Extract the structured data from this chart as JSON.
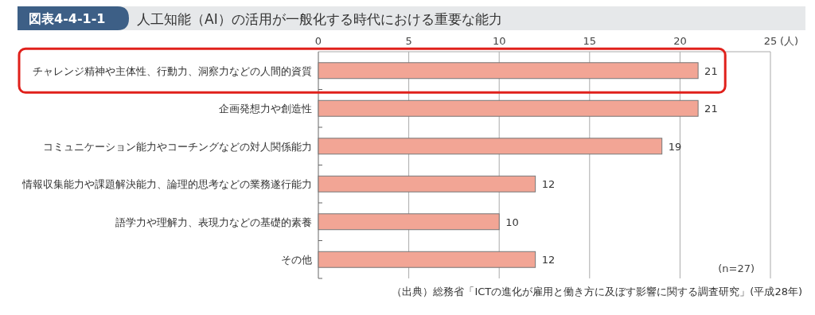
{
  "chart_data": {
    "type": "bar",
    "orientation": "horizontal",
    "title": "人工知能（AI）の活用が一般化する時代における重要な能力",
    "xlabel": "(人)",
    "categories": [
      "チャレンジ精神や主体性、行動力、洞察力などの人間的資質",
      "企画発想力や創造性",
      "コミュニケーション能力やコーチングなどの対人関係能力",
      "情報収集能力や課題解決能力、論理的思考などの業務遂行能力",
      "語学力や理解力、表現力などの基礎的素養",
      "その他"
    ],
    "values": [
      21,
      21,
      19,
      12,
      10,
      12
    ],
    "color": "#f2a595",
    "xlim": [
      0,
      25
    ],
    "xticks": [
      0,
      5,
      10,
      15,
      20,
      25
    ],
    "grid": "x",
    "data_labels": true,
    "annotations": [
      "図表4-4-1-1",
      "(n=27)",
      "（出典）総務省「ICTの進化が雇用と働き方に及ぼす影響に関する調査研究」(平成28年)"
    ]
  }
}
